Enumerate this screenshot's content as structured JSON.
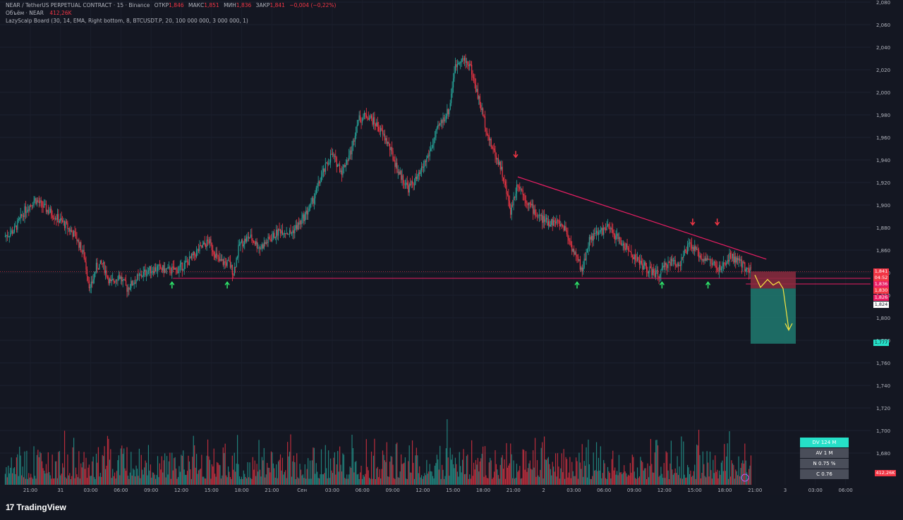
{
  "header": {
    "symbol_line": "NEAR / TetherUS PERPETUAL CONTRACT · 15 · Binance",
    "open_label": "ОТКР",
    "open_value": "1,846",
    "high_label": "МАКС",
    "high_value": "1,851",
    "low_label": "МИН",
    "low_value": "1,836",
    "close_label": "ЗАКР",
    "close_value": "1,841",
    "change": "−0,004 (−0,22%)",
    "volume_label": "Объём · NEAR",
    "volume_value": "412,26K",
    "indicator": "LazyScalp Board (30, 14, EMA, Right bottom, 8, BTCUSDT.P, 20, 100 000 000, 3 000 000, 1)"
  },
  "price_tags": {
    "last_price": "1,841",
    "countdown": "04:52",
    "level_a": "1,836",
    "level_b": "1,830",
    "level_c": "1,826",
    "level_d": "1,824",
    "target": "1,777",
    "volume_tag": "412,26K"
  },
  "stats_board": {
    "dv": "DV 124 M",
    "av": "AV 1 M",
    "n": "N 0.75 %",
    "c": "C  0.76"
  },
  "logo_text": "TradingView",
  "colors": {
    "up": "#26a69a",
    "down": "#f23645",
    "trendline": "#e91e63",
    "forecast": "#f5e642",
    "target_zone": "#1f7a70",
    "stop_zone": "#8b2c3e",
    "background": "#141722"
  },
  "chart_data": {
    "type": "candlestick",
    "ylim": [
      1.74,
      2.08
    ],
    "y_ticks": [
      "2,080",
      "2,060",
      "2,040",
      "2,020",
      "2,000",
      "1,980",
      "1,960",
      "1,940",
      "1,920",
      "1,900",
      "1,880",
      "1,860",
      "1,840",
      "1,820",
      "1,800",
      "1,780",
      "1,760",
      "1,740",
      "1,720",
      "1,700",
      "1,680"
    ],
    "x_ticks": [
      "21:00",
      "31",
      "03:00",
      "06:00",
      "09:00",
      "12:00",
      "15:00",
      "18:00",
      "21:00",
      "Сен",
      "03:00",
      "06:00",
      "09:00",
      "12:00",
      "15:00",
      "18:00",
      "21:00",
      "2",
      "03:00",
      "06:00",
      "09:00",
      "12:00",
      "15:00",
      "18:00",
      "21:00",
      "3",
      "03:00",
      "06:00"
    ],
    "close_path": [
      [
        0,
        1.872
      ],
      [
        10,
        1.878
      ],
      [
        20,
        1.895
      ],
      [
        30,
        1.905
      ],
      [
        40,
        1.897
      ],
      [
        50,
        1.89
      ],
      [
        60,
        1.882
      ],
      [
        70,
        1.872
      ],
      [
        78,
        1.855
      ],
      [
        84,
        1.825
      ],
      [
        90,
        1.845
      ],
      [
        96,
        1.848
      ],
      [
        104,
        1.83
      ],
      [
        112,
        1.838
      ],
      [
        120,
        1.826
      ],
      [
        130,
        1.835
      ],
      [
        140,
        1.842
      ],
      [
        150,
        1.844
      ],
      [
        160,
        1.842
      ],
      [
        170,
        1.843
      ],
      [
        180,
        1.85
      ],
      [
        190,
        1.86
      ],
      [
        200,
        1.868
      ],
      [
        210,
        1.85
      ],
      [
        220,
        1.848
      ],
      [
        224,
        1.84
      ],
      [
        230,
        1.865
      ],
      [
        240,
        1.872
      ],
      [
        250,
        1.862
      ],
      [
        260,
        1.87
      ],
      [
        270,
        1.878
      ],
      [
        280,
        1.875
      ],
      [
        290,
        1.885
      ],
      [
        300,
        1.9
      ],
      [
        310,
        1.925
      ],
      [
        320,
        1.945
      ],
      [
        330,
        1.93
      ],
      [
        340,
        1.95
      ],
      [
        345,
        1.975
      ],
      [
        355,
        1.98
      ],
      [
        365,
        1.97
      ],
      [
        375,
        1.955
      ],
      [
        385,
        1.93
      ],
      [
        395,
        1.915
      ],
      [
        405,
        1.925
      ],
      [
        415,
        1.945
      ],
      [
        425,
        1.97
      ],
      [
        435,
        1.985
      ],
      [
        440,
        2.02
      ],
      [
        445,
        2.03
      ],
      [
        455,
        2.025
      ],
      [
        465,
        1.99
      ],
      [
        475,
        1.955
      ],
      [
        485,
        1.935
      ],
      [
        490,
        1.915
      ],
      [
        495,
        1.895
      ],
      [
        502,
        1.92
      ],
      [
        510,
        1.905
      ],
      [
        520,
        1.892
      ],
      [
        530,
        1.885
      ],
      [
        540,
        1.885
      ],
      [
        548,
        1.88
      ],
      [
        556,
        1.86
      ],
      [
        565,
        1.842
      ],
      [
        572,
        1.87
      ],
      [
        580,
        1.875
      ],
      [
        590,
        1.88
      ],
      [
        600,
        1.87
      ],
      [
        610,
        1.86
      ],
      [
        620,
        1.85
      ],
      [
        630,
        1.842
      ],
      [
        640,
        1.838
      ],
      [
        650,
        1.85
      ],
      [
        660,
        1.848
      ],
      [
        670,
        1.865
      ],
      [
        680,
        1.855
      ],
      [
        690,
        1.85
      ],
      [
        700,
        1.842
      ],
      [
        710,
        1.855
      ],
      [
        720,
        1.848
      ],
      [
        730,
        1.841
      ]
    ],
    "annotations": {
      "support_level": 1.835,
      "trendline_from": {
        "x": 502,
        "y": 1.925
      },
      "trendline_to": {
        "x": 745,
        "y": 1.852
      },
      "entry_zone": [
        1.826,
        1.841
      ],
      "target_zone": [
        1.777,
        1.826
      ],
      "up_arrows_x": [
        164,
        218,
        560,
        643,
        688
      ],
      "down_arrows_x": [
        500,
        673,
        697
      ]
    },
    "volume": {
      "note": "shown as bars along bottom; scale not labeled"
    }
  }
}
